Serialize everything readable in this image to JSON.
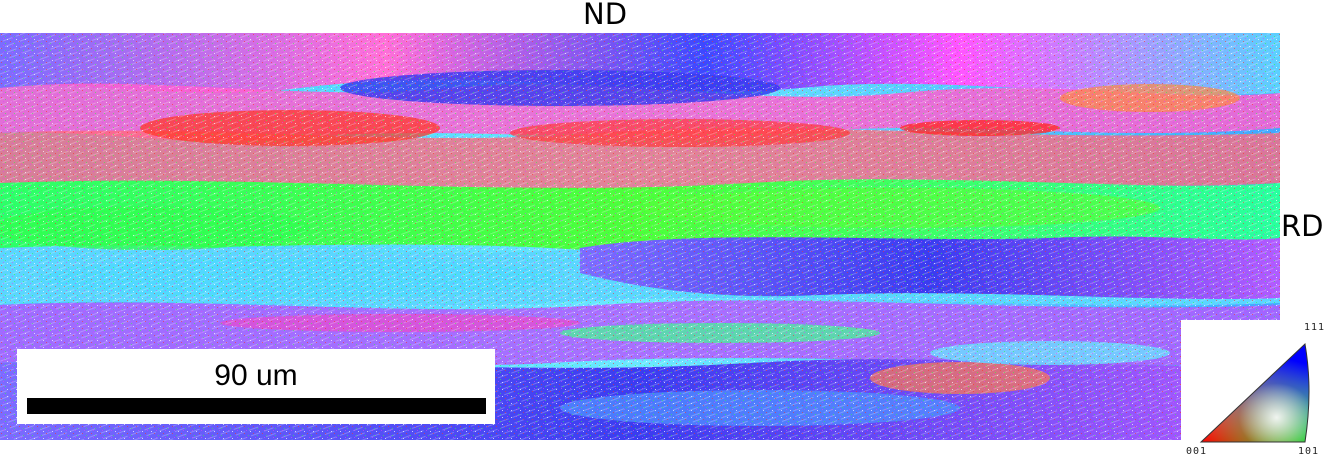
{
  "labels": {
    "top_axis": "ND",
    "right_axis": "RD"
  },
  "scale_bar": {
    "label": "90 um"
  },
  "ipf_key": {
    "corner_111": "111",
    "corner_001": "001",
    "corner_101": "101",
    "colors": {
      "corner_001": "#ff0000",
      "corner_101": "#00e000",
      "corner_111": "#0000ff"
    }
  },
  "map_palette": [
    "#3a3cf0",
    "#4f8cff",
    "#30e0ff",
    "#40ff90",
    "#70ff30",
    "#e040ff",
    "#ff30a0",
    "#ff3020",
    "#ff9020",
    "#9c40ff"
  ]
}
